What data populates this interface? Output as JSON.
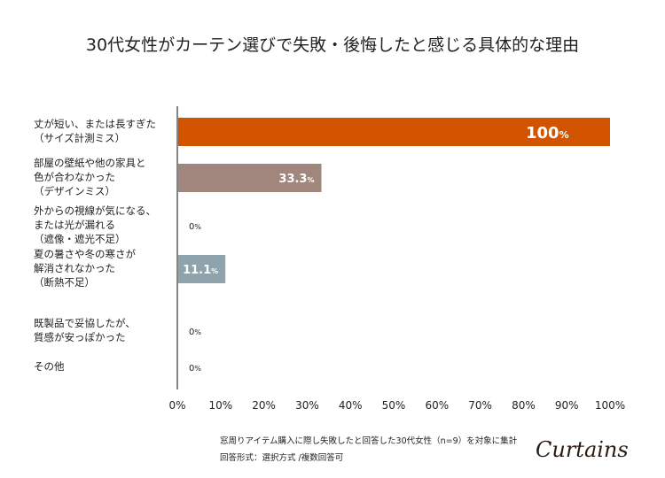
{
  "title": "30代女性がカーテン選びで失敗・後悔したと感じる具体的な理由",
  "chart_data": {
    "type": "bar",
    "orientation": "horizontal",
    "title": "30代女性がカーテン選びで失敗・後悔したと感じる具体的な理由",
    "categories": [
      "丈が短い、または長すぎた\n（サイズ計測ミス）",
      "部屋の壁紙や他の家具と\n色が合わなかった\n（デザインミス）",
      "外からの視線が気になる、\nまたは光が漏れる\n（遮像・遮光不足）",
      "夏の暑さや冬の寒さが\n解消されなかった\n（断熱不足）",
      "既製品で妥協したが、\n質感が安っぽかった",
      "その他"
    ],
    "values": [
      100,
      33.3,
      0,
      11.1,
      0,
      0
    ],
    "data_labels": [
      "100",
      "33.3",
      "0",
      "11.1",
      "0",
      "0"
    ],
    "unit": "%",
    "colors": [
      "#d35400",
      "#a1867d",
      "#8fa3ad",
      "#8fa3ad",
      "#8fa3ad",
      "#8fa3ad"
    ],
    "xlim": [
      0,
      100
    ],
    "xticks": [
      "0%",
      "10%",
      "20%",
      "30%",
      "40%",
      "50%",
      "60%",
      "70%",
      "80%",
      "90%",
      "100%"
    ],
    "grid": false
  },
  "notes": [
    "窓周りアイテム購入に際し失敗したと回答した30代女性（n=9）を対象に集計",
    "回答形式：選択方式 /複数回答可"
  ],
  "logo": "Curtains"
}
